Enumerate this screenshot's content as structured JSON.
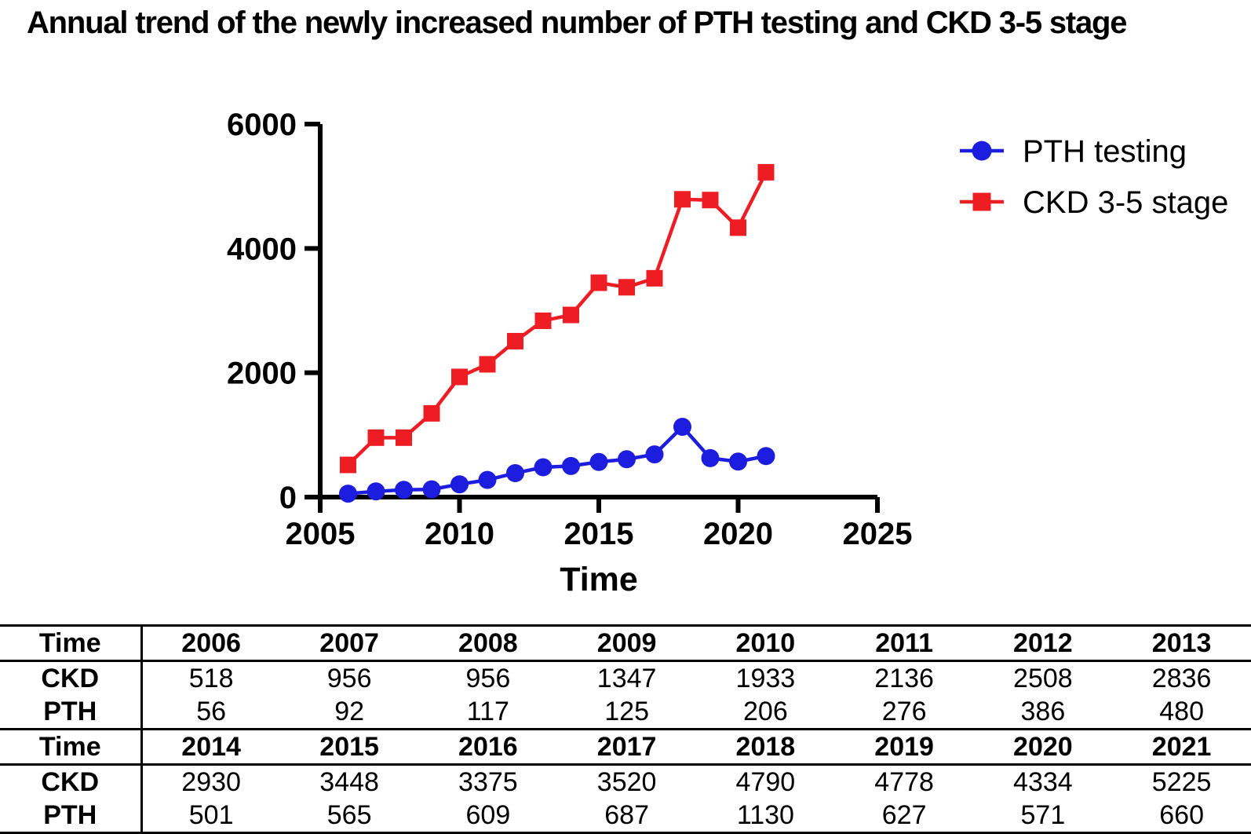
{
  "title": "Annual trend of the newly increased number of PTH testing and CKD 3-5 stage",
  "chart_data": {
    "type": "line",
    "title": "Annual trend of the newly increased number of PTH testing and CKD 3-5 stage",
    "xlabel": "Time",
    "ylabel": "",
    "xlim": [
      2005,
      2025
    ],
    "ylim": [
      0,
      6000
    ],
    "xticks": [
      2005,
      2010,
      2015,
      2020,
      2025
    ],
    "yticks": [
      0,
      2000,
      4000,
      6000
    ],
    "grid": false,
    "legend_position": "upper-right",
    "x": [
      2006,
      2007,
      2008,
      2009,
      2010,
      2011,
      2012,
      2013,
      2014,
      2015,
      2016,
      2017,
      2018,
      2019,
      2020,
      2021
    ],
    "series": [
      {
        "name": "PTH testing",
        "marker": "circle",
        "color": "#1d1de0",
        "values": [
          56,
          92,
          117,
          125,
          206,
          276,
          386,
          480,
          501,
          565,
          609,
          687,
          1130,
          627,
          571,
          660
        ]
      },
      {
        "name": "CKD 3-5 stage",
        "marker": "square",
        "color": "#ee1c23",
        "values": [
          518,
          956,
          956,
          1347,
          1933,
          2136,
          2508,
          2836,
          2930,
          3448,
          3375,
          3520,
          4790,
          4778,
          4334,
          5225
        ]
      }
    ]
  },
  "table": {
    "row_labels": {
      "time": "Time",
      "ckd": "CKD",
      "pth": "PTH"
    },
    "banks": [
      {
        "years": [
          "2006",
          "2007",
          "2008",
          "2009",
          "2010",
          "2011",
          "2012",
          "2013"
        ],
        "ckd": [
          "518",
          "956",
          "956",
          "1347",
          "1933",
          "2136",
          "2508",
          "2836"
        ],
        "pth": [
          "56",
          "92",
          "117",
          "125",
          "206",
          "276",
          "386",
          "480"
        ]
      },
      {
        "years": [
          "2014",
          "2015",
          "2016",
          "2017",
          "2018",
          "2019",
          "2020",
          "2021"
        ],
        "ckd": [
          "2930",
          "3448",
          "3375",
          "3520",
          "4790",
          "4778",
          "4334",
          "5225"
        ],
        "pth": [
          "501",
          "565",
          "609",
          "687",
          "1130",
          "627",
          "571",
          "660"
        ]
      }
    ]
  },
  "colors": {
    "pth": "#1d1de0",
    "ckd": "#ee1c23",
    "axis": "#000000",
    "background": "#ffffff"
  }
}
